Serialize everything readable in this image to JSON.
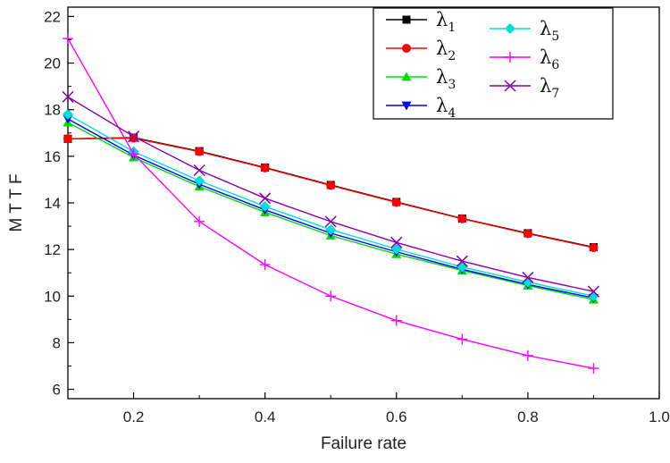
{
  "chart_data": {
    "type": "line",
    "title": "",
    "xlabel": "Failure rate",
    "ylabel": "M T T F",
    "xlim": [
      0.1,
      1.0
    ],
    "ylim": [
      5.6,
      22.4
    ],
    "xticks": [
      0.2,
      0.4,
      0.6,
      0.8,
      1.0
    ],
    "xtick_labels": [
      "0.2",
      "0.4",
      "0.6",
      "0.8",
      "1.0"
    ],
    "yticks": [
      6,
      8,
      10,
      12,
      14,
      16,
      18,
      20,
      22
    ],
    "ytick_labels": [
      "6",
      "8",
      "10",
      "12",
      "14",
      "16",
      "18",
      "20",
      "22"
    ],
    "grid": false,
    "legend_position": "top-right",
    "x": [
      0.1,
      0.2,
      0.3,
      0.4,
      0.5,
      0.6,
      0.7,
      0.8,
      0.9
    ],
    "series": [
      {
        "name": "λ",
        "sub": "1",
        "marker": "square",
        "color": "#000000",
        "values": [
          16.75,
          16.8,
          16.22,
          15.52,
          14.77,
          14.04,
          13.33,
          12.7,
          12.1
        ]
      },
      {
        "name": "λ",
        "sub": "2",
        "marker": "circle",
        "color": "#ff0000",
        "values": [
          16.75,
          16.78,
          16.2,
          15.5,
          14.75,
          14.02,
          13.32,
          12.68,
          12.08
        ]
      },
      {
        "name": "λ",
        "sub": "3",
        "marker": "triangle-up",
        "color": "#00dd00",
        "values": [
          17.45,
          15.95,
          14.7,
          13.6,
          12.6,
          11.8,
          11.1,
          10.45,
          9.85
        ]
      },
      {
        "name": "λ",
        "sub": "4",
        "marker": "triangle-down",
        "color": "#0000ff",
        "values": [
          17.6,
          16.05,
          14.8,
          13.7,
          12.7,
          11.9,
          11.15,
          10.5,
          9.92
        ]
      },
      {
        "name": "λ",
        "sub": "5",
        "marker": "diamond",
        "color": "#00dddd",
        "values": [
          17.8,
          16.2,
          14.95,
          13.85,
          12.85,
          12.02,
          11.25,
          10.6,
          10.0
        ]
      },
      {
        "name": "λ",
        "sub": "6",
        "marker": "plus",
        "color": "#ff00ff",
        "values": [
          21.05,
          16.1,
          13.2,
          11.35,
          10.0,
          8.95,
          8.15,
          7.45,
          6.9
        ]
      },
      {
        "name": "λ",
        "sub": "7",
        "marker": "x",
        "color": "#8800aa",
        "values": [
          18.55,
          16.85,
          15.4,
          14.2,
          13.2,
          12.3,
          11.5,
          10.8,
          10.2
        ]
      }
    ]
  }
}
